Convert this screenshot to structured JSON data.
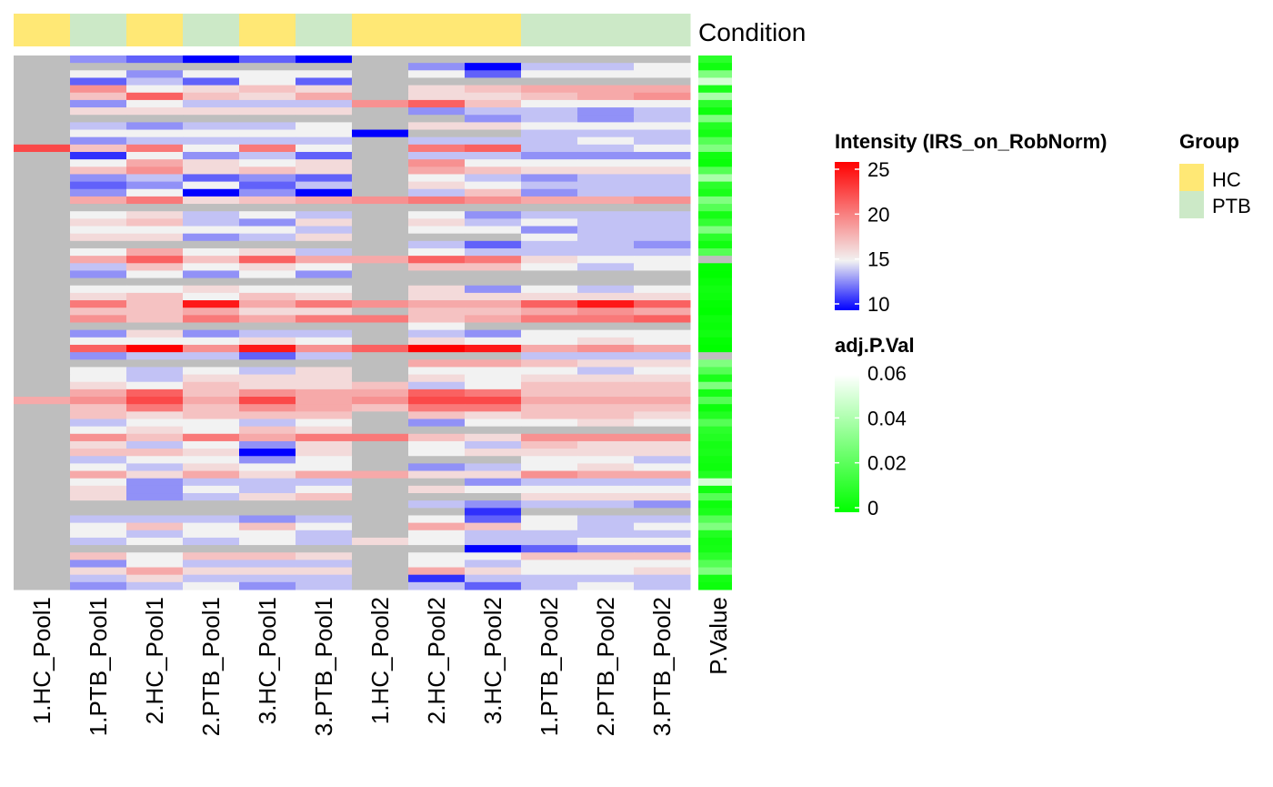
{
  "chart_data": {
    "type": "heatmap",
    "columns": [
      "1.HC_Pool1",
      "1.PTB_Pool1",
      "2.HC_Pool1",
      "2.PTB_Pool1",
      "3.HC_Pool1",
      "3.PTB_Pool1",
      "1.HC_Pool2",
      "2.HC_Pool2",
      "3.HC_Pool2",
      "1.PTB_Pool2",
      "2.PTB_Pool2",
      "3.PTB_Pool2"
    ],
    "column_group": [
      "HC",
      "PTB",
      "HC",
      "PTB",
      "HC",
      "PTB",
      "HC",
      "HC",
      "HC",
      "PTB",
      "PTB",
      "PTB"
    ],
    "column_annotation_label": "Condition",
    "row_annotation_label": "P.Value",
    "n_rows": 72,
    "na_color": "#bebebe",
    "values": [
      [
        null,
        13,
        12,
        10,
        12,
        10,
        null,
        null,
        null,
        null,
        null,
        null
      ],
      [
        null,
        null,
        null,
        null,
        null,
        null,
        null,
        13,
        10,
        14,
        14,
        15
      ],
      [
        null,
        15,
        13,
        15,
        15,
        15,
        null,
        15,
        12,
        15,
        15,
        15
      ],
      [
        null,
        12,
        14,
        12,
        15,
        12,
        null,
        null,
        null,
        null,
        null,
        null
      ],
      [
        null,
        19,
        15,
        16,
        17,
        16,
        null,
        16,
        17,
        18,
        18,
        18
      ],
      [
        null,
        17,
        21,
        17,
        16,
        18,
        null,
        16,
        16,
        17,
        18,
        19
      ],
      [
        null,
        13,
        15,
        14,
        14,
        14,
        19,
        21,
        17,
        15,
        15,
        15
      ],
      [
        null,
        16,
        16,
        16,
        16,
        16,
        null,
        13,
        14,
        14,
        13,
        14
      ],
      [
        null,
        null,
        null,
        null,
        null,
        null,
        null,
        null,
        13,
        14,
        13,
        14
      ],
      [
        null,
        14,
        13,
        14,
        14,
        15,
        null,
        16,
        16,
        15,
        15,
        15
      ],
      [
        null,
        15,
        15,
        15,
        15,
        15,
        10,
        null,
        null,
        14,
        14,
        14
      ],
      [
        null,
        13,
        14,
        14,
        14,
        14,
        null,
        14,
        14,
        14,
        15,
        14
      ],
      [
        22,
        17,
        20,
        15,
        20,
        15,
        null,
        20,
        21,
        14,
        14,
        15
      ],
      [
        null,
        11,
        15,
        13,
        14,
        12,
        null,
        14,
        14,
        13,
        13,
        13
      ],
      [
        null,
        15,
        18,
        16,
        15,
        16,
        null,
        19,
        15,
        15,
        15,
        15
      ],
      [
        null,
        17,
        19,
        16,
        17,
        16,
        null,
        18,
        17,
        16,
        16,
        16
      ],
      [
        null,
        13,
        14,
        12,
        13,
        12,
        null,
        15,
        14,
        13,
        14,
        14
      ],
      [
        null,
        12,
        13,
        15,
        12,
        14,
        null,
        16,
        15,
        14,
        14,
        14
      ],
      [
        null,
        13,
        15,
        10,
        13,
        10,
        null,
        14,
        17,
        13,
        14,
        14
      ],
      [
        null,
        18,
        20,
        16,
        17,
        18,
        19,
        20,
        19,
        18,
        18,
        19
      ],
      [
        null,
        null,
        null,
        null,
        null,
        null,
        null,
        null,
        null,
        null,
        null,
        null
      ],
      [
        null,
        15,
        16,
        14,
        15,
        14,
        null,
        15,
        13,
        14,
        14,
        14
      ],
      [
        null,
        16,
        17,
        14,
        13,
        16,
        null,
        16,
        14,
        15,
        14,
        14
      ],
      [
        null,
        15,
        15,
        15,
        15,
        14,
        null,
        15,
        15,
        13,
        14,
        14
      ],
      [
        null,
        16,
        16,
        13,
        14,
        16,
        null,
        null,
        null,
        15,
        14,
        14
      ],
      [
        null,
        null,
        null,
        null,
        null,
        null,
        null,
        14,
        12,
        14,
        14,
        13
      ],
      [
        null,
        15,
        18,
        15,
        16,
        14,
        null,
        15,
        14,
        14,
        14,
        14
      ],
      [
        null,
        18,
        21,
        17,
        21,
        18,
        18,
        21,
        20,
        16,
        15,
        15
      ],
      [
        null,
        14,
        17,
        15,
        16,
        15,
        null,
        17,
        17,
        15,
        14,
        15
      ],
      [
        null,
        13,
        15,
        13,
        15,
        13,
        null,
        null,
        null,
        null,
        null,
        null
      ],
      [
        null,
        null,
        null,
        null,
        null,
        null,
        null,
        null,
        null,
        null,
        null,
        null
      ],
      [
        null,
        15,
        15,
        16,
        15,
        15,
        null,
        16,
        13,
        15,
        14,
        15
      ],
      [
        null,
        16,
        17,
        15,
        17,
        16,
        null,
        16,
        16,
        16,
        16,
        16
      ],
      [
        null,
        20,
        17,
        24,
        18,
        20,
        19,
        18,
        18,
        21,
        24,
        21
      ],
      [
        null,
        17,
        17,
        18,
        16,
        16,
        null,
        17,
        17,
        18,
        19,
        18
      ],
      [
        null,
        19,
        17,
        20,
        18,
        20,
        20,
        17,
        18,
        20,
        20,
        21
      ],
      [
        null,
        null,
        null,
        null,
        null,
        null,
        null,
        15,
        null,
        null,
        null,
        null
      ],
      [
        null,
        13,
        16,
        13,
        14,
        14,
        null,
        14,
        13,
        15,
        15,
        15
      ],
      [
        null,
        15,
        15,
        15,
        16,
        15,
        null,
        16,
        15,
        15,
        16,
        15
      ],
      [
        null,
        21,
        25,
        19,
        24,
        19,
        21,
        25,
        24,
        18,
        19,
        18
      ],
      [
        null,
        13,
        14,
        14,
        12,
        14,
        null,
        null,
        null,
        14,
        14,
        14
      ],
      [
        null,
        null,
        null,
        null,
        null,
        null,
        null,
        18,
        18,
        17,
        16,
        16
      ],
      [
        null,
        15,
        14,
        15,
        14,
        16,
        null,
        15,
        15,
        15,
        14,
        15
      ],
      [
        null,
        15,
        14,
        16,
        16,
        16,
        null,
        16,
        15,
        16,
        16,
        16
      ],
      [
        null,
        16,
        15,
        17,
        16,
        16,
        17,
        14,
        15,
        17,
        17,
        17
      ],
      [
        null,
        18,
        21,
        17,
        19,
        18,
        18,
        21,
        20,
        17,
        17,
        17
      ],
      [
        18,
        19,
        22,
        18,
        22,
        18,
        19,
        22,
        22,
        18,
        18,
        18
      ],
      [
        null,
        17,
        20,
        17,
        19,
        18,
        17,
        20,
        20,
        17,
        17,
        17
      ],
      [
        null,
        17,
        16,
        17,
        17,
        17,
        null,
        17,
        16,
        17,
        17,
        16
      ],
      [
        null,
        14,
        15,
        15,
        14,
        15,
        null,
        13,
        15,
        15,
        16,
        15
      ],
      [
        null,
        15,
        16,
        15,
        17,
        16,
        null,
        null,
        null,
        null,
        null,
        null
      ],
      [
        null,
        19,
        17,
        20,
        18,
        20,
        20,
        17,
        16,
        19,
        19,
        19
      ],
      [
        null,
        16,
        14,
        15,
        13,
        16,
        null,
        15,
        14,
        17,
        16,
        16
      ],
      [
        null,
        17,
        17,
        16,
        10,
        16,
        null,
        15,
        16,
        16,
        16,
        16
      ],
      [
        null,
        14,
        15,
        15,
        13,
        15,
        null,
        null,
        null,
        15,
        15,
        14
      ],
      [
        null,
        15,
        14,
        16,
        15,
        15,
        null,
        13,
        14,
        15,
        16,
        15
      ],
      [
        null,
        18,
        16,
        18,
        16,
        18,
        18,
        16,
        16,
        19,
        18,
        18
      ],
      [
        null,
        15,
        13,
        14,
        14,
        14,
        null,
        null,
        13,
        14,
        14,
        14
      ],
      [
        null,
        16,
        13,
        15,
        14,
        15,
        null,
        16,
        15,
        15,
        15,
        15
      ],
      [
        null,
        16,
        13,
        14,
        16,
        17,
        null,
        null,
        null,
        16,
        16,
        16
      ],
      [
        null,
        null,
        null,
        null,
        null,
        null,
        null,
        14,
        13,
        14,
        14,
        13
      ],
      [
        null,
        null,
        null,
        null,
        null,
        null,
        null,
        null,
        11,
        null,
        null,
        null
      ],
      [
        null,
        14,
        14,
        14,
        13,
        14,
        null,
        15,
        12,
        15,
        14,
        14
      ],
      [
        null,
        15,
        17,
        15,
        17,
        15,
        null,
        18,
        17,
        15,
        14,
        15
      ],
      [
        null,
        15,
        14,
        15,
        15,
        14,
        null,
        15,
        14,
        14,
        14,
        14
      ],
      [
        null,
        14,
        15,
        14,
        15,
        14,
        16,
        15,
        14,
        14,
        15,
        15
      ],
      [
        null,
        null,
        null,
        null,
        null,
        null,
        null,
        null,
        10,
        12,
        13,
        13
      ],
      [
        null,
        17,
        15,
        17,
        17,
        16,
        null,
        15,
        15,
        17,
        17,
        17
      ],
      [
        null,
        13,
        15,
        14,
        14,
        14,
        null,
        15,
        14,
        15,
        15,
        15
      ],
      [
        null,
        16,
        18,
        16,
        16,
        16,
        null,
        18,
        16,
        15,
        15,
        16
      ],
      [
        null,
        14,
        16,
        14,
        14,
        14,
        null,
        11,
        14,
        14,
        14,
        14
      ],
      [
        null,
        13,
        14,
        15,
        13,
        14,
        null,
        14,
        12,
        14,
        15,
        14
      ]
    ],
    "p_values": [
      0.01,
      0.004,
      0.03,
      0.05,
      0.006,
      0.04,
      0.01,
      0.003,
      0.03,
      0.008,
      0.005,
      0.02,
      0.03,
      0.004,
      0.002,
      0.02,
      0.04,
      0.01,
      0.006,
      0.03,
      0.02,
      0.005,
      0.012,
      0.03,
      0.01,
      0.004,
      0.02,
      null,
      0.001,
      0.0,
      0.002,
      0.004,
      0.003,
      0.001,
      0.0,
      0.003,
      0.002,
      0.004,
      0.001,
      0.0,
      null,
      0.03,
      0.02,
      0.006,
      0.03,
      0.005,
      0.02,
      0.003,
      0.008,
      0.02,
      0.01,
      0.008,
      0.005,
      0.006,
      0.004,
      0.003,
      0.008,
      0.05,
      0.004,
      0.02,
      0.003,
      0.006,
      0.02,
      0.03,
      0.008,
      0.004,
      0.005,
      0.01,
      0.02,
      0.03,
      0.005,
      0.003
    ],
    "intensity_legend": {
      "title": "Intensity (IRS_on_RobNorm)",
      "ticks": [
        "25",
        "20",
        "15",
        "10"
      ],
      "tick_values": [
        25,
        20,
        15,
        10
      ],
      "range": [
        10,
        25
      ],
      "colors": {
        "low": "#0000ff",
        "mid": "#f2f2f2",
        "high": "#ff0000"
      }
    },
    "pvalue_legend": {
      "title": "adj.P.Val",
      "ticks": [
        "0.06",
        "0.04",
        "0.02",
        "0"
      ],
      "tick_values": [
        0.06,
        0.04,
        0.02,
        0
      ],
      "range": [
        0,
        0.06
      ],
      "colors": {
        "low": "#00ff00",
        "high": "#ffffff"
      }
    },
    "group_legend": {
      "title": "Group",
      "items": [
        {
          "label": "HC",
          "color": "#ffe875"
        },
        {
          "label": "PTB",
          "color": "#cce9c7"
        }
      ]
    }
  }
}
